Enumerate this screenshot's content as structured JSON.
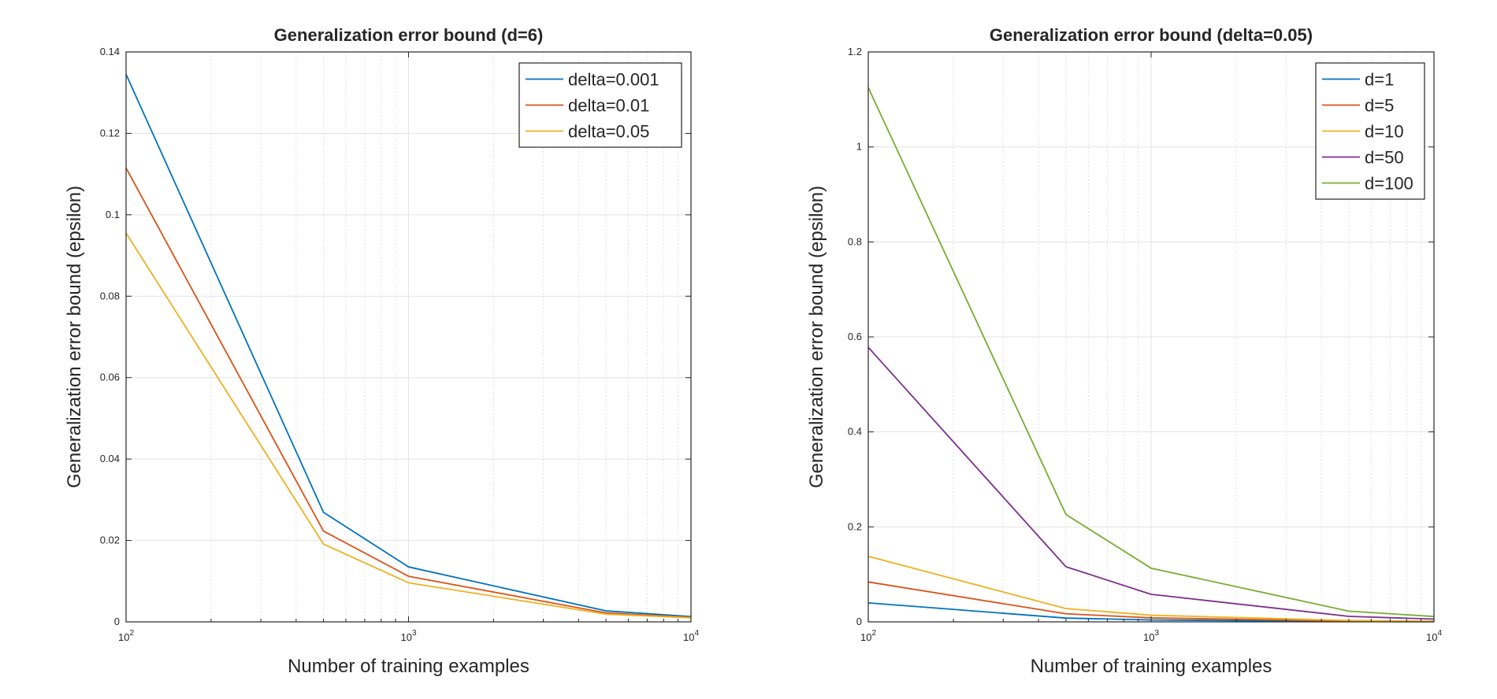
{
  "chart_data": [
    {
      "type": "line",
      "title": "Generalization error bound (d=6)",
      "xlabel": "Number of training examples",
      "ylabel": "Generalization error bound (epsilon)",
      "x_scale": "log",
      "xlim": [
        100,
        10000
      ],
      "ylim": [
        0,
        0.14
      ],
      "x_ticks": [
        {
          "value": 100,
          "base": "10",
          "exp": "2"
        },
        {
          "value": 1000,
          "base": "10",
          "exp": "3"
        },
        {
          "value": 10000,
          "base": "10",
          "exp": "4"
        }
      ],
      "y_ticks": [
        {
          "value": 0,
          "label": "0"
        },
        {
          "value": 0.02,
          "label": "0.02"
        },
        {
          "value": 0.04,
          "label": "0.04"
        },
        {
          "value": 0.06,
          "label": "0.06"
        },
        {
          "value": 0.08,
          "label": "0.08"
        },
        {
          "value": 0.1,
          "label": "0.1"
        },
        {
          "value": 0.12,
          "label": "0.12"
        },
        {
          "value": 0.14,
          "label": "0.14"
        }
      ],
      "grid": true,
      "legend_position": "top-right",
      "x": [
        100,
        500,
        1000,
        5000,
        10000
      ],
      "series": [
        {
          "name": "delta=0.001",
          "color": "#0072BD",
          "values": [
            0.1345,
            0.0269,
            0.0135,
            0.0027,
            0.0013
          ]
        },
        {
          "name": "delta=0.01",
          "color": "#D95319",
          "values": [
            0.1115,
            0.0223,
            0.0112,
            0.0022,
            0.0011
          ]
        },
        {
          "name": "delta=0.05",
          "color": "#EDB120",
          "values": [
            0.0955,
            0.0191,
            0.0096,
            0.0019,
            0.001
          ]
        }
      ]
    },
    {
      "type": "line",
      "title": "Generalization error bound (delta=0.05)",
      "xlabel": "Number of training examples",
      "ylabel": "Generalization error bound (epsilon)",
      "x_scale": "log",
      "xlim": [
        100,
        10000
      ],
      "ylim": [
        0,
        1.2
      ],
      "x_ticks": [
        {
          "value": 100,
          "base": "10",
          "exp": "2"
        },
        {
          "value": 1000,
          "base": "10",
          "exp": "3"
        },
        {
          "value": 10000,
          "base": "10",
          "exp": "4"
        }
      ],
      "y_ticks": [
        {
          "value": 0,
          "label": "0"
        },
        {
          "value": 0.2,
          "label": "0.2"
        },
        {
          "value": 0.4,
          "label": "0.4"
        },
        {
          "value": 0.6,
          "label": "0.6"
        },
        {
          "value": 0.8,
          "label": "0.8"
        },
        {
          "value": 1,
          "label": "1"
        },
        {
          "value": 1.2,
          "label": "1.2"
        }
      ],
      "grid": true,
      "legend_position": "top-right",
      "x": [
        100,
        500,
        1000,
        5000,
        10000
      ],
      "series": [
        {
          "name": "d=1",
          "color": "#0072BD",
          "values": [
            0.04,
            0.008,
            0.004,
            0.0008,
            0.0004
          ]
        },
        {
          "name": "d=5",
          "color": "#D95319",
          "values": [
            0.084,
            0.017,
            0.0084,
            0.0017,
            0.0008
          ]
        },
        {
          "name": "d=10",
          "color": "#EDB120",
          "values": [
            0.138,
            0.028,
            0.014,
            0.0028,
            0.0014
          ]
        },
        {
          "name": "d=50",
          "color": "#7E2F8E",
          "values": [
            0.578,
            0.116,
            0.058,
            0.0116,
            0.0058
          ]
        },
        {
          "name": "d=100",
          "color": "#77AC30",
          "values": [
            1.125,
            0.226,
            0.113,
            0.0226,
            0.0113
          ]
        }
      ]
    }
  ]
}
